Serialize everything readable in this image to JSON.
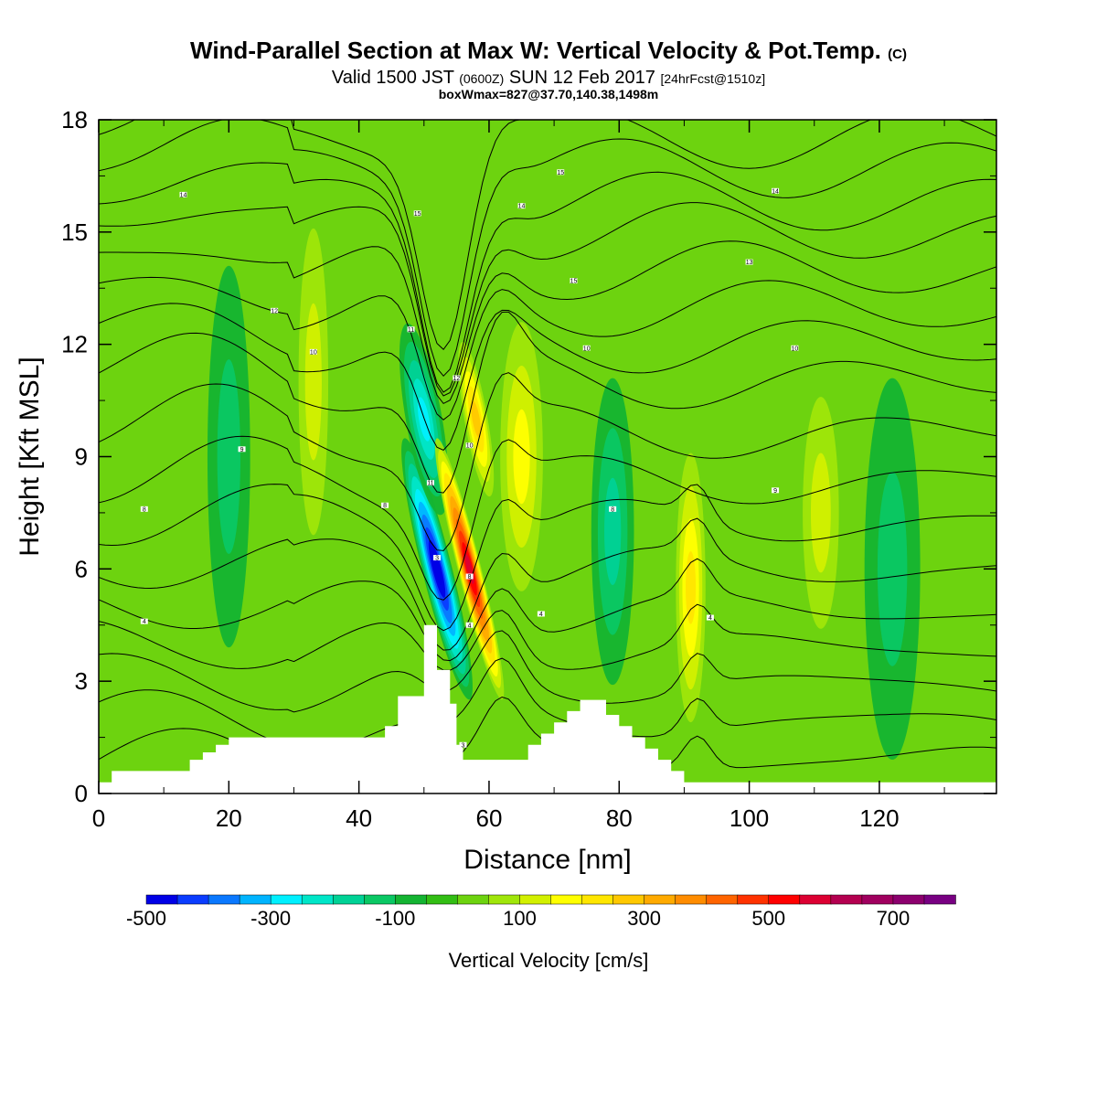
{
  "title": {
    "main": "Wind-Parallel Section at Max W: Vertical Velocity & Pot.Temp.",
    "copyright": "(C)",
    "valid_prefix": "Valid 1500 JST",
    "valid_z": "(0600Z)",
    "valid_date": "SUN 12 Feb 2017",
    "forecast": "[24hrFcst@1510z]",
    "boxwmax": "boxWmax=827@37.70,140.38,1498m"
  },
  "colors": {
    "background_green": "#6dd30f",
    "terrain_fill": "#ffffff",
    "contour_line": "#000000"
  },
  "chart_data": {
    "type": "heatmap",
    "xlabel": "Distance [nm]",
    "ylabel": "Height [Kft MSL]",
    "xlim": [
      0,
      138
    ],
    "ylim": [
      0,
      18
    ],
    "x_ticks": [
      "0",
      "20",
      "40",
      "60",
      "80",
      "100",
      "120"
    ],
    "y_ticks": [
      "0",
      "3",
      "6",
      "9",
      "12",
      "15",
      "18"
    ],
    "colorbar": {
      "title": "Vertical Velocity [cm/s]",
      "tick_labels": [
        "-500",
        "-300",
        "-100",
        "100",
        "300",
        "500",
        "700"
      ],
      "levels": [
        -500,
        -450,
        -400,
        -350,
        -300,
        -250,
        -200,
        -150,
        -100,
        -50,
        0,
        50,
        100,
        150,
        200,
        250,
        300,
        350,
        400,
        450,
        500,
        550,
        600,
        650,
        700,
        750,
        800
      ],
      "colors": [
        "#0000e6",
        "#0a3cff",
        "#0a78ff",
        "#00b4ff",
        "#00f0ff",
        "#00e6c8",
        "#00d296",
        "#0ac864",
        "#14b432",
        "#32be14",
        "#6dd30f",
        "#a0e60a",
        "#d2f000",
        "#ffff00",
        "#ffe600",
        "#ffc800",
        "#ffaa00",
        "#ff8c00",
        "#ff6400",
        "#ff3200",
        "#ff0000",
        "#dc0032",
        "#b40050",
        "#a0005f",
        "#8c006e",
        "#780082"
      ]
    },
    "terrain_profile": {
      "x": [
        0,
        2,
        2,
        14,
        14,
        16,
        16,
        18,
        18,
        20,
        20,
        22,
        22,
        44,
        44,
        46,
        46,
        50,
        50,
        52,
        52,
        54,
        54,
        55,
        55,
        56,
        56,
        66,
        66,
        68,
        68,
        70,
        70,
        72,
        72,
        74,
        74,
        78,
        78,
        80,
        80,
        82,
        82,
        84,
        84,
        86,
        86,
        88,
        88,
        90,
        90,
        138
      ],
      "y": [
        0.3,
        0.3,
        0.6,
        0.6,
        0.9,
        0.9,
        1.1,
        1.1,
        1.3,
        1.3,
        1.5,
        1.5,
        1.5,
        1.5,
        1.8,
        1.8,
        2.6,
        2.6,
        4.5,
        4.5,
        3.3,
        3.3,
        2.4,
        2.4,
        1.3,
        1.3,
        0.9,
        0.9,
        1.3,
        1.3,
        1.6,
        1.6,
        1.9,
        1.9,
        2.2,
        2.2,
        2.5,
        2.5,
        2.1,
        2.1,
        1.8,
        1.8,
        1.5,
        1.5,
        1.2,
        1.2,
        0.9,
        0.9,
        0.6,
        0.6,
        0.3,
        0.3
      ]
    },
    "w_features": [
      {
        "x": 52,
        "y": 6.0,
        "width_x": 4,
        "height_y": 7,
        "value": -480
      },
      {
        "x": 50,
        "y": 10,
        "width_x": 5,
        "height_y": 5,
        "value": -250
      },
      {
        "x": 57,
        "y": 6.0,
        "width_x": 3,
        "height_y": 7,
        "value": 560
      },
      {
        "x": 58,
        "y": 10,
        "width_x": 3,
        "height_y": 4,
        "value": 250
      },
      {
        "x": 65,
        "y": 9.0,
        "width_x": 6,
        "height_y": 7,
        "value": 130
      },
      {
        "x": 79,
        "y": 7.0,
        "width_x": 6,
        "height_y": 8,
        "value": -130
      },
      {
        "x": 91,
        "y": 5.5,
        "width_x": 4,
        "height_y": 7,
        "value": 200
      },
      {
        "x": 33,
        "y": 11,
        "width_x": 4,
        "height_y": 8,
        "value": 80
      },
      {
        "x": 111,
        "y": 7.5,
        "width_x": 5,
        "height_y": 6,
        "value": 90
      },
      {
        "x": 20,
        "y": 9,
        "width_x": 6,
        "height_y": 10,
        "value": -60
      },
      {
        "x": 122,
        "y": 6,
        "width_x": 8,
        "height_y": 10,
        "value": -70
      }
    ],
    "pot_temp_isolines": {
      "levels": [
        2,
        3,
        4,
        5,
        6,
        7,
        8,
        9,
        10,
        11,
        12,
        13,
        14,
        15,
        16,
        17,
        18
      ],
      "base_heights": [
        0.9,
        1.9,
        2.9,
        3.9,
        4.9,
        6.0,
        7.2,
        8.3,
        9.6,
        11.0,
        12.0,
        13.0,
        14.0,
        15.0,
        15.8,
        16.7,
        17.5
      ]
    },
    "isoline_labels": [
      {
        "x": 7,
        "y": 4.6,
        "text": "4"
      },
      {
        "x": 7,
        "y": 7.6,
        "text": "8"
      },
      {
        "x": 22,
        "y": 9.2,
        "text": "9"
      },
      {
        "x": 13,
        "y": 16.0,
        "text": "14"
      },
      {
        "x": 27,
        "y": 12.9,
        "text": "12"
      },
      {
        "x": 33,
        "y": 11.8,
        "text": "10"
      },
      {
        "x": 44,
        "y": 7.7,
        "text": "8"
      },
      {
        "x": 48,
        "y": 12.4,
        "text": "11"
      },
      {
        "x": 49,
        "y": 15.5,
        "text": "15"
      },
      {
        "x": 51,
        "y": 8.3,
        "text": "11"
      },
      {
        "x": 52,
        "y": 6.3,
        "text": "3"
      },
      {
        "x": 55,
        "y": 11.1,
        "text": "12"
      },
      {
        "x": 57,
        "y": 9.3,
        "text": "10"
      },
      {
        "x": 57,
        "y": 5.8,
        "text": "8"
      },
      {
        "x": 57,
        "y": 4.5,
        "text": "4"
      },
      {
        "x": 56,
        "y": 1.3,
        "text": "3"
      },
      {
        "x": 65,
        "y": 15.7,
        "text": "14"
      },
      {
        "x": 71,
        "y": 16.6,
        "text": "15"
      },
      {
        "x": 73,
        "y": 13.7,
        "text": "15"
      },
      {
        "x": 75,
        "y": 11.9,
        "text": "10"
      },
      {
        "x": 68,
        "y": 4.8,
        "text": "4"
      },
      {
        "x": 79,
        "y": 7.6,
        "text": "8"
      },
      {
        "x": 100,
        "y": 14.2,
        "text": "13"
      },
      {
        "x": 104,
        "y": 16.1,
        "text": "14"
      },
      {
        "x": 107,
        "y": 11.9,
        "text": "10"
      },
      {
        "x": 104,
        "y": 8.1,
        "text": "9"
      },
      {
        "x": 94,
        "y": 4.7,
        "text": "4"
      }
    ]
  }
}
